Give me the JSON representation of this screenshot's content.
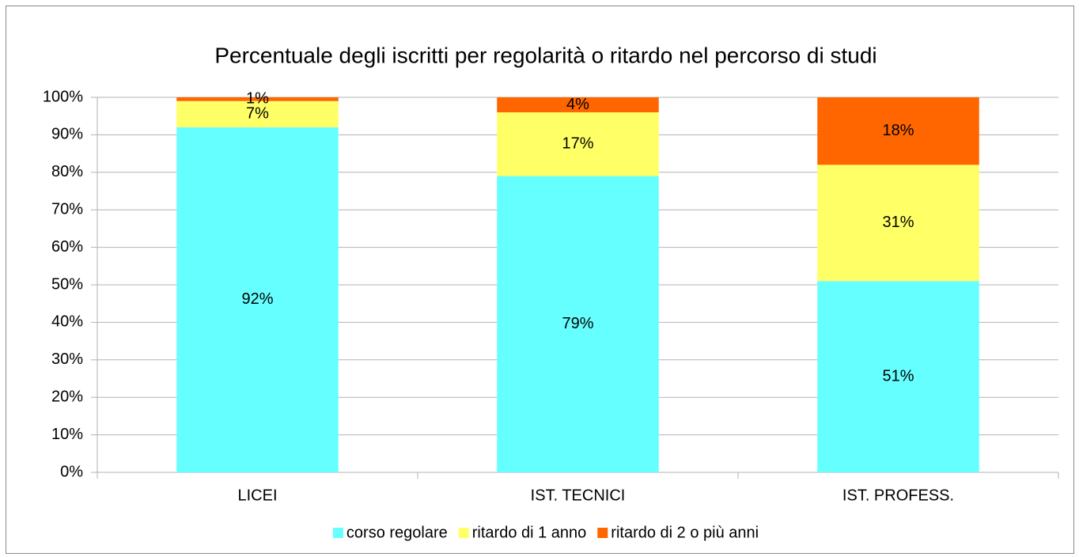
{
  "chart_data": {
    "type": "stacked_bar",
    "title": "Percentuale degli iscritti per regolarità o ritardo nel percorso di studi",
    "categories": [
      "LICEI",
      "IST. TECNICI",
      "IST. PROFESS."
    ],
    "series": [
      {
        "name": "corso regolare",
        "color": "#66ffff",
        "values": [
          92,
          79,
          51
        ],
        "value_labels": [
          "92%",
          "79%",
          "51%"
        ]
      },
      {
        "name": "ritardo di 1 anno",
        "color": "#ffff66",
        "values": [
          7,
          17,
          31
        ],
        "value_labels": [
          "7%",
          "17%",
          "31%"
        ]
      },
      {
        "name": "ritardo di 2 o più anni",
        "color": "#ff6600",
        "values": [
          1,
          4,
          18
        ],
        "value_labels": [
          "1%",
          "4%",
          "18%"
        ]
      }
    ],
    "ylim": [
      0,
      100
    ],
    "yticks": [
      {
        "value": 0,
        "label": "0%"
      },
      {
        "value": 10,
        "label": "10%"
      },
      {
        "value": 20,
        "label": "20%"
      },
      {
        "value": 30,
        "label": "30%"
      },
      {
        "value": 40,
        "label": "40%"
      },
      {
        "value": 50,
        "label": "50%"
      },
      {
        "value": 60,
        "label": "60%"
      },
      {
        "value": 70,
        "label": "70%"
      },
      {
        "value": 80,
        "label": "80%"
      },
      {
        "value": 90,
        "label": "90%"
      },
      {
        "value": 100,
        "label": "100%"
      }
    ],
    "grid": true,
    "legend": "bottom"
  }
}
